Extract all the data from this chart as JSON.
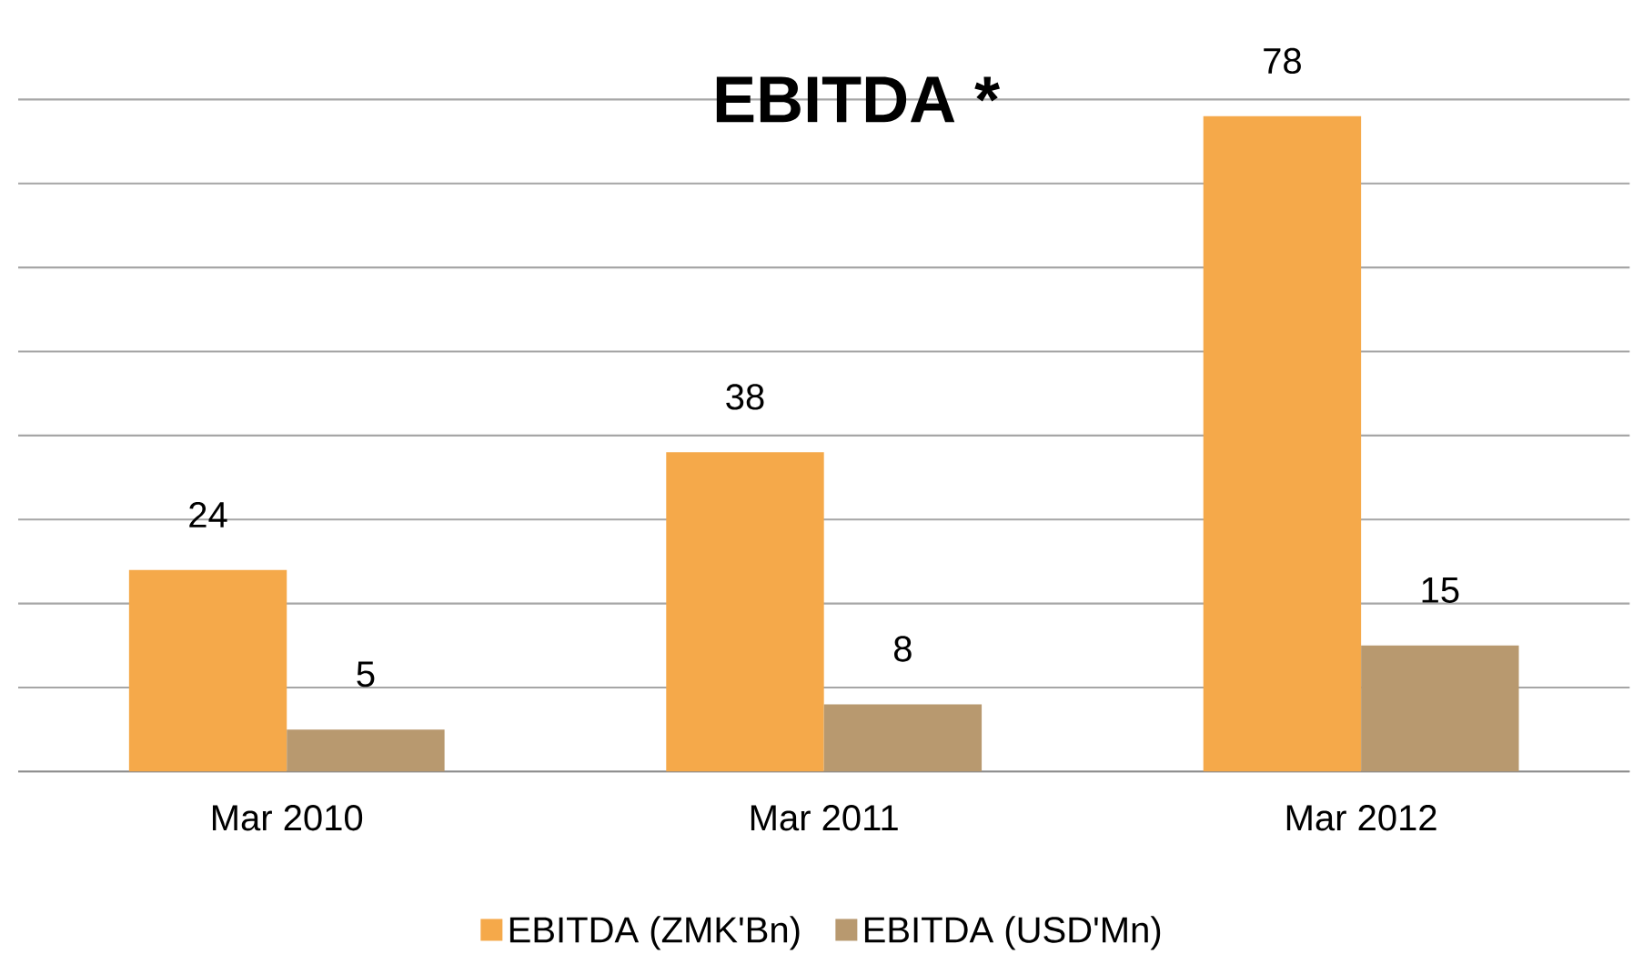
{
  "chart_data": {
    "type": "bar",
    "title": "EBITDA *",
    "categories": [
      "Mar 2010",
      "Mar 2011",
      "Mar 2012"
    ],
    "series": [
      {
        "name": "EBITDA (ZMK'Bn)",
        "color": "#f5a94a",
        "values": [
          24,
          38,
          78
        ]
      },
      {
        "name": "EBITDA (USD'Mn)",
        "color": "#b8996f",
        "values": [
          5,
          8,
          15
        ]
      }
    ],
    "ylim": [
      0,
      80
    ],
    "yticks": [
      {
        "value": 0,
        "label": null
      },
      {
        "value": 10,
        "label": null
      },
      {
        "value": 20,
        "label": null
      },
      {
        "value": 30,
        "label": null
      },
      {
        "value": 40,
        "label": null
      },
      {
        "value": 50,
        "label": null
      },
      {
        "value": 60,
        "label": null
      },
      {
        "value": 70,
        "label": null
      },
      {
        "value": 80,
        "label": null
      }
    ],
    "grid": "y",
    "legend": "bottom",
    "data_labels": true,
    "tick_labels": "x"
  }
}
